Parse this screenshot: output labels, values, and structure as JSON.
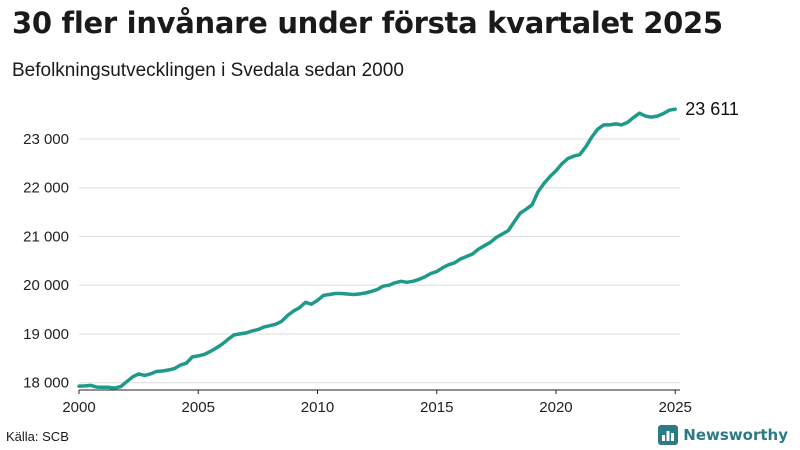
{
  "header": {
    "title": "30 fler invånare under första kvartalet 2025",
    "subtitle": "Befolkningsutvecklingen i Svedala sedan 2000"
  },
  "footer": {
    "source": "Källa: SCB",
    "brand": "Newsworthy"
  },
  "colors": {
    "line": "#1f9a8a",
    "grid": "#dddddd",
    "brand": "#2c7a85"
  },
  "chart_data": {
    "type": "line",
    "title": "30 fler invånare under första kvartalet 2025",
    "subtitle": "Befolkningsutvecklingen i Svedala sedan 2000",
    "xlabel": "",
    "ylabel": "",
    "xlim": [
      2000,
      2025.2
    ],
    "ylim": [
      17850,
      23800
    ],
    "x_ticks": [
      2000,
      2005,
      2010,
      2015,
      2020,
      2025
    ],
    "y_ticks": [
      18000,
      19000,
      20000,
      21000,
      22000,
      23000
    ],
    "x_tick_labels": [
      "2000",
      "2005",
      "2010",
      "2015",
      "2020",
      "2025"
    ],
    "y_tick_labels": [
      "18 000",
      "19 000",
      "20 000",
      "21 000",
      "22 000",
      "23 000"
    ],
    "grid": "horizontal",
    "end_label": "23 611",
    "series": [
      {
        "x": [
          2000.0,
          2000.25,
          2000.5,
          2000.75,
          2001.0,
          2001.25,
          2001.5,
          2001.75,
          2002.0,
          2002.25,
          2002.5,
          2002.75,
          2003.0,
          2003.25,
          2003.5,
          2003.75,
          2004.0,
          2004.25,
          2004.5,
          2004.75,
          2005.0,
          2005.25,
          2005.5,
          2005.75,
          2006.0,
          2006.25,
          2006.5,
          2006.75,
          2007.0,
          2007.25,
          2007.5,
          2007.75,
          2008.0,
          2008.25,
          2008.5,
          2008.75,
          2009.0,
          2009.25,
          2009.5,
          2009.75,
          2010.0,
          2010.25,
          2010.5,
          2010.75,
          2011.0,
          2011.25,
          2011.5,
          2011.75,
          2012.0,
          2012.25,
          2012.5,
          2012.75,
          2013.0,
          2013.25,
          2013.5,
          2013.75,
          2014.0,
          2014.25,
          2014.5,
          2014.75,
          2015.0,
          2015.25,
          2015.5,
          2015.75,
          2016.0,
          2016.25,
          2016.5,
          2016.75,
          2017.0,
          2017.25,
          2017.5,
          2017.75,
          2018.0,
          2018.25,
          2018.5,
          2018.75,
          2019.0,
          2019.25,
          2019.5,
          2019.75,
          2020.0,
          2020.25,
          2020.5,
          2020.75,
          2021.0,
          2021.25,
          2021.5,
          2021.75,
          2022.0,
          2022.25,
          2022.5,
          2022.75,
          2023.0,
          2023.25,
          2023.5,
          2023.75,
          2024.0,
          2024.25,
          2024.5,
          2024.75,
          2025.0
        ],
        "values": [
          17930,
          17935,
          17945,
          17910,
          17905,
          17905,
          17890,
          17920,
          18020,
          18120,
          18180,
          18150,
          18180,
          18230,
          18240,
          18260,
          18290,
          18360,
          18400,
          18530,
          18550,
          18580,
          18640,
          18710,
          18790,
          18890,
          18980,
          19000,
          19020,
          19060,
          19090,
          19140,
          19170,
          19200,
          19260,
          19380,
          19470,
          19540,
          19650,
          19610,
          19690,
          19790,
          19810,
          19830,
          19830,
          19820,
          19810,
          19820,
          19840,
          19870,
          19910,
          19980,
          20000,
          20050,
          20080,
          20060,
          20080,
          20120,
          20170,
          20240,
          20280,
          20360,
          20420,
          20460,
          20540,
          20590,
          20640,
          20740,
          20810,
          20880,
          20980,
          21050,
          21120,
          21300,
          21480,
          21560,
          21650,
          21920,
          22090,
          22230,
          22350,
          22490,
          22600,
          22650,
          22680,
          22840,
          23040,
          23200,
          23290,
          23290,
          23310,
          23290,
          23340,
          23440,
          23530,
          23470,
          23450,
          23470,
          23520,
          23590,
          23611
        ]
      }
    ]
  }
}
